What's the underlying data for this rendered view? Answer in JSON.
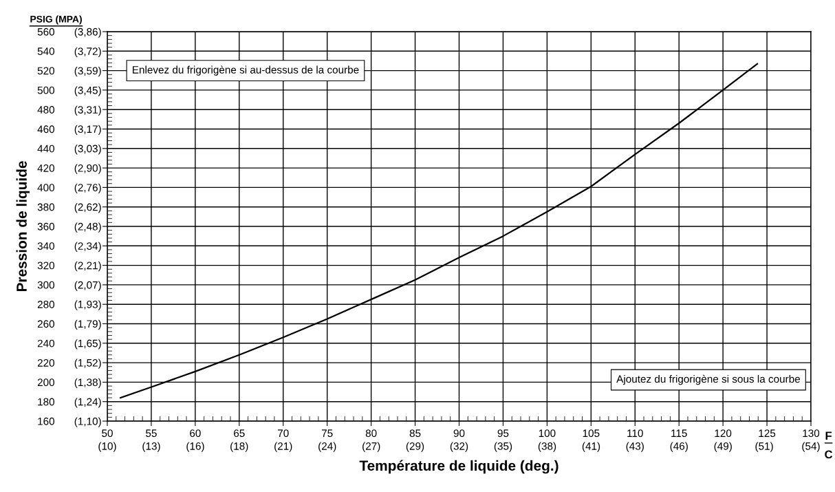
{
  "chart_data": {
    "type": "line",
    "xlabel": "Température de liquide (deg.)",
    "ylabel": "Pression de liquide",
    "x": [
      51.5,
      55,
      60,
      65,
      70,
      75,
      80,
      85,
      90,
      95,
      100,
      105,
      110,
      115,
      120,
      123.9
    ],
    "series": [
      {
        "color": "#000000",
        "values": [
          184,
          195,
          211,
          228,
          246,
          265,
          285,
          305,
          328,
          350,
          375,
          401,
          434,
          466,
          500,
          527
        ]
      }
    ],
    "xlim": [
      50,
      130
    ],
    "ylim": [
      160,
      560
    ],
    "xticks": [
      50,
      55,
      60,
      65,
      70,
      75,
      80,
      85,
      90,
      95,
      100,
      105,
      110,
      115,
      120,
      125,
      130
    ],
    "x2lim": [
      10,
      54.44
    ],
    "x2ticks": [
      {
        "value": 10,
        "label": "(10)"
      },
      {
        "value": 12.78,
        "label": "(13)"
      },
      {
        "value": 15.56,
        "label": "(16)"
      },
      {
        "value": 18.33,
        "label": "(18)"
      },
      {
        "value": 21.11,
        "label": "(21)"
      },
      {
        "value": 23.89,
        "label": "(24)"
      },
      {
        "value": 26.67,
        "label": "(27)"
      },
      {
        "value": 29.44,
        "label": "(29)"
      },
      {
        "value": 32.22,
        "label": "(32)"
      },
      {
        "value": 35,
        "label": "(35)"
      },
      {
        "value": 37.78,
        "label": "(38)"
      },
      {
        "value": 40.56,
        "label": "(41)"
      },
      {
        "value": 43.33,
        "label": "(43)"
      },
      {
        "value": 46.11,
        "label": "(46)"
      },
      {
        "value": 48.89,
        "label": "(49)"
      },
      {
        "value": 51.49,
        "label": "(51)"
      },
      {
        "value": 54.44,
        "label": "(54)"
      }
    ],
    "yticks": [
      160,
      180,
      200,
      220,
      240,
      260,
      280,
      300,
      320,
      340,
      360,
      380,
      400,
      420,
      440,
      460,
      480,
      500,
      520,
      540,
      560
    ],
    "y2lim": [
      1.103,
      3.861
    ],
    "y2ticks": [
      {
        "value": 1.103,
        "label": "(1,10)"
      },
      {
        "value": 1.241,
        "label": "(1,24)"
      },
      {
        "value": 1.379,
        "label": "(1,38)"
      },
      {
        "value": 1.517,
        "label": "(1,52)"
      },
      {
        "value": 1.655,
        "label": "(1,65)"
      },
      {
        "value": 1.793,
        "label": "(1,79)"
      },
      {
        "value": 1.931,
        "label": "(1,93)"
      },
      {
        "value": 2.068,
        "label": "(2,07)"
      },
      {
        "value": 2.206,
        "label": "(2,21)"
      },
      {
        "value": 2.344,
        "label": "(2,34)"
      },
      {
        "value": 2.482,
        "label": "(2,48)"
      },
      {
        "value": 2.62,
        "label": "(2,62)"
      },
      {
        "value": 2.758,
        "label": "(2,76)"
      },
      {
        "value": 2.896,
        "label": "(2,90)"
      },
      {
        "value": 3.034,
        "label": "(3,03)"
      },
      {
        "value": 3.172,
        "label": "(3,17)"
      },
      {
        "value": 3.309,
        "label": "(3,31)"
      },
      {
        "value": 3.447,
        "label": "(3,45)"
      },
      {
        "value": 3.585,
        "label": "(3,59)"
      },
      {
        "value": 3.723,
        "label": "(3,72)"
      },
      {
        "value": 3.861,
        "label": "(3,86)"
      }
    ],
    "annotations": [
      "Enlevez du frigorigène si au-dessus de la courbe",
      "Ajoutez du frigorigène si sous la courbe",
      "PSIG (MPA)",
      "F",
      "C"
    ],
    "grid": true,
    "legend": false,
    "marker": "none",
    "line_style": "solid"
  }
}
